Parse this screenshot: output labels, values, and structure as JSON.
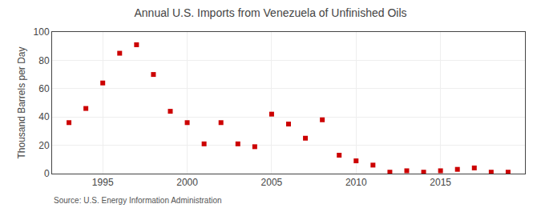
{
  "chart_data": {
    "type": "scatter",
    "title": "Annual U.S. Imports from Venezuela of Unfinished Oils",
    "ylabel": "Thousand Barrels per Day",
    "annotation": "Source: U.S. Energy Information Administration",
    "x": [
      1993,
      1994,
      1995,
      1996,
      1997,
      1998,
      1999,
      2000,
      2001,
      2002,
      2003,
      2004,
      2005,
      2006,
      2007,
      2008,
      2009,
      2010,
      2011,
      2012,
      2013,
      2014,
      2015,
      2016,
      2017,
      2018,
      2019
    ],
    "values": [
      36,
      46,
      64,
      85,
      91,
      70,
      44,
      36,
      21,
      36,
      21,
      19,
      42,
      35,
      25,
      38,
      13,
      9,
      6,
      1,
      2,
      1,
      2,
      3,
      4,
      1,
      1
    ],
    "color": "#cc0000",
    "marker": "square",
    "xlim": [
      1992,
      2020
    ],
    "xticks": [
      1995,
      2000,
      2005,
      2010,
      2015
    ],
    "ylim": [
      0,
      100
    ],
    "yticks": [
      0,
      20,
      40,
      60,
      80,
      100
    ],
    "grid": true
  }
}
